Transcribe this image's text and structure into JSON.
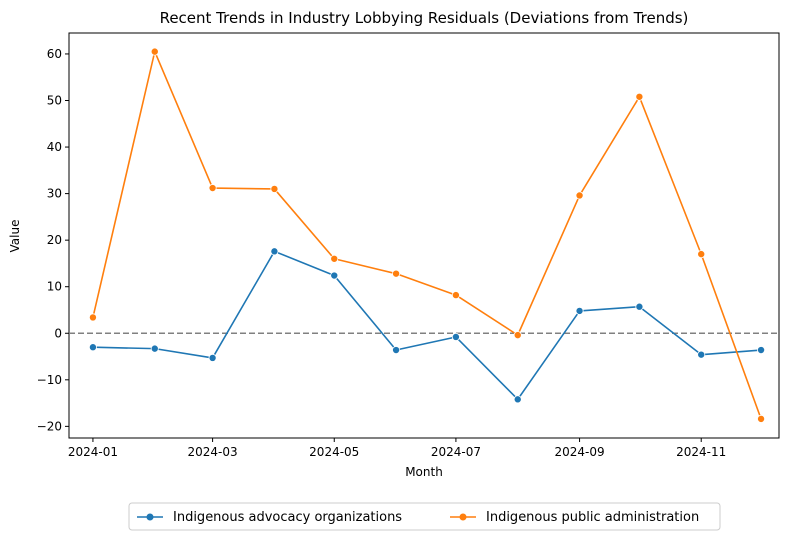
{
  "chart_data": {
    "type": "line",
    "title": "Recent Trends in Industry Lobbying Residuals (Deviations from Trends)",
    "xlabel": "Month",
    "ylabel": "Value",
    "x": [
      "2024-01-01",
      "2024-02-01",
      "2024-03-01",
      "2024-04-01",
      "2024-05-01",
      "2024-06-01",
      "2024-07-01",
      "2024-08-01",
      "2024-09-01",
      "2024-10-01",
      "2024-11-01",
      "2024-12-01"
    ],
    "x_tick_labels": [
      "2024-01",
      "2024-03",
      "2024-05",
      "2024-07",
      "2024-09",
      "2024-11"
    ],
    "y_ticks": [
      -20,
      -10,
      0,
      10,
      20,
      30,
      40,
      50,
      60
    ],
    "ylim": [
      -22.5,
      64.5
    ],
    "xlim": [
      "2023-12-20",
      "2024-12-10"
    ],
    "reference_line": {
      "y": 0,
      "style": "dashed",
      "color": "#808080"
    },
    "grid": false,
    "legend_position": "bottom-center",
    "series": [
      {
        "name": "Indigenous advocacy organizations",
        "color": "#1f77b4",
        "marker": "circle",
        "values": [
          -3.0,
          -3.3,
          -5.3,
          17.6,
          12.4,
          -3.6,
          -0.8,
          -14.2,
          4.8,
          5.7,
          -4.6,
          -3.6
        ]
      },
      {
        "name": "Indigenous public administration",
        "color": "#ff7f0e",
        "marker": "circle",
        "values": [
          3.4,
          60.5,
          31.2,
          31.0,
          16.0,
          12.8,
          8.2,
          -0.4,
          29.6,
          50.8,
          17.0,
          -18.4
        ]
      }
    ]
  }
}
